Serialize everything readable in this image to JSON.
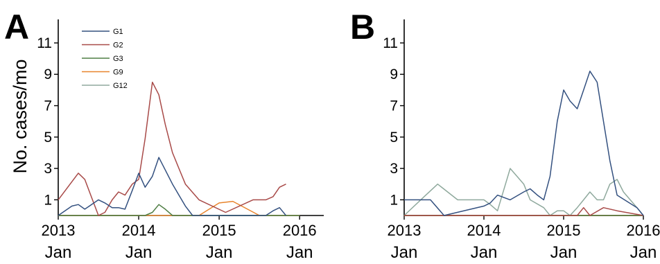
{
  "colors": {
    "G1": "#33507f",
    "G2": "#a84a48",
    "G3": "#4f7e44",
    "G9": "#e8842c",
    "G12": "#8fa99d"
  },
  "chart_data": [
    {
      "panel_label": "A",
      "type": "line",
      "ylabel": "No. cases/mo",
      "yticks": [
        1,
        3,
        5,
        7,
        9,
        11
      ],
      "ylim": [
        0,
        12.5
      ],
      "xticks": [
        {
          "x": 2013.0,
          "year": "2013",
          "month": "Jan"
        },
        {
          "x": 2014.0,
          "year": "2014",
          "month": "Jan"
        },
        {
          "x": 2015.0,
          "year": "2015",
          "month": "Jan"
        },
        {
          "x": 2016.0,
          "year": "2016",
          "month": "Jan"
        }
      ],
      "xlim": [
        2013.0,
        2016.3
      ],
      "legend_position": "top-left",
      "series": [
        {
          "name": "G1",
          "x": [
            2013.0,
            2013.17,
            2013.25,
            2013.33,
            2013.5,
            2013.58,
            2013.67,
            2013.75,
            2013.83,
            2013.92,
            2014.0,
            2014.08,
            2014.17,
            2014.25,
            2014.33,
            2014.42,
            2014.5,
            2014.58,
            2014.67,
            2014.75,
            2015.42,
            2015.5,
            2015.58,
            2015.67,
            2015.75,
            2015.83
          ],
          "y": [
            0,
            0.6,
            0.7,
            0.4,
            1.0,
            0.8,
            0.5,
            0.5,
            0.4,
            1.6,
            2.7,
            1.8,
            2.5,
            3.7,
            2.9,
            2.0,
            1.3,
            0.6,
            0,
            0,
            0,
            0,
            0,
            0.3,
            0.5,
            0
          ]
        },
        {
          "name": "G2",
          "x": [
            2013.0,
            2013.25,
            2013.33,
            2013.5,
            2013.58,
            2013.67,
            2013.75,
            2013.83,
            2013.92,
            2014.0,
            2014.08,
            2014.17,
            2014.25,
            2014.33,
            2014.42,
            2014.5,
            2014.58,
            2014.75,
            2015.08,
            2015.42,
            2015.5,
            2015.58,
            2015.67,
            2015.75,
            2015.83
          ],
          "y": [
            1.0,
            2.7,
            2.3,
            0,
            0.2,
            1.0,
            1.5,
            1.3,
            2.0,
            2.3,
            4.9,
            8.5,
            7.7,
            5.8,
            4.0,
            3.0,
            2.0,
            1.0,
            0.2,
            1.0,
            1.0,
            1.0,
            1.2,
            1.8,
            2.0
          ]
        },
        {
          "name": "G3",
          "x": [
            2013.0,
            2014.08,
            2014.17,
            2014.25,
            2014.33,
            2014.42,
            2016.0
          ],
          "y": [
            0,
            0,
            0.2,
            0.7,
            0.4,
            0,
            0
          ]
        },
        {
          "name": "G9",
          "x": [
            2013.0,
            2014.75,
            2015.0,
            2015.17,
            2015.5,
            2016.0
          ],
          "y": [
            0,
            0,
            0.8,
            0.9,
            0,
            0
          ]
        },
        {
          "name": "G12",
          "x": [
            2013.0,
            2016.0
          ],
          "y": [
            0,
            0
          ]
        }
      ]
    },
    {
      "panel_label": "B",
      "type": "line",
      "ylabel": "",
      "yticks": [
        1,
        3,
        5,
        7,
        9,
        11
      ],
      "ylim": [
        0,
        12.5
      ],
      "xticks": [
        {
          "x": 2013.0,
          "year": "2013",
          "month": "Jan"
        },
        {
          "x": 2014.0,
          "year": "2014",
          "month": "Jan"
        },
        {
          "x": 2015.0,
          "year": "2015",
          "month": "Jan"
        },
        {
          "x": 2016.0,
          "year": "2016",
          "month": "Jan"
        }
      ],
      "xlim": [
        2013.0,
        2016.0
      ],
      "series": [
        {
          "name": "G1",
          "x": [
            2013.0,
            2013.33,
            2013.5,
            2014.0,
            2014.08,
            2014.17,
            2014.33,
            2014.5,
            2014.58,
            2014.67,
            2014.75,
            2014.83,
            2014.92,
            2015.0,
            2015.08,
            2015.17,
            2015.25,
            2015.33,
            2015.42,
            2015.5,
            2015.58,
            2015.67,
            2015.92,
            2016.0
          ],
          "y": [
            1.0,
            1.0,
            0,
            0.6,
            0.8,
            1.3,
            1.0,
            1.5,
            1.7,
            1.3,
            1.0,
            2.5,
            6.0,
            8.0,
            7.3,
            6.8,
            8.0,
            9.2,
            8.5,
            6.0,
            3.5,
            1.3,
            0.5,
            0
          ]
        },
        {
          "name": "G2",
          "x": [
            2013.0,
            2015.17,
            2015.25,
            2015.33,
            2015.5,
            2015.67,
            2016.0
          ],
          "y": [
            0,
            0,
            0.5,
            0,
            0.5,
            0.3,
            0
          ]
        },
        {
          "name": "G3",
          "x": [
            2013.0,
            2016.0
          ],
          "y": [
            0,
            0
          ]
        },
        {
          "name": "G9",
          "x": [
            2013.0,
            2016.0
          ],
          "y": [
            0,
            0
          ]
        },
        {
          "name": "G12",
          "x": [
            2013.0,
            2013.25,
            2013.42,
            2013.67,
            2014.0,
            2014.08,
            2014.17,
            2014.33,
            2014.5,
            2014.58,
            2014.75,
            2014.83,
            2014.92,
            2015.0,
            2015.08,
            2015.17,
            2015.25,
            2015.33,
            2015.42,
            2015.5,
            2015.58,
            2015.67,
            2015.75,
            2015.92,
            2016.0
          ],
          "y": [
            0,
            1.2,
            2.0,
            1.0,
            1.0,
            0.7,
            0.3,
            3.0,
            2.0,
            1.0,
            0.5,
            0,
            0.3,
            0.3,
            0,
            0.5,
            1.0,
            1.5,
            1.0,
            1.0,
            2.0,
            2.3,
            1.5,
            0.5,
            0
          ]
        }
      ]
    }
  ]
}
